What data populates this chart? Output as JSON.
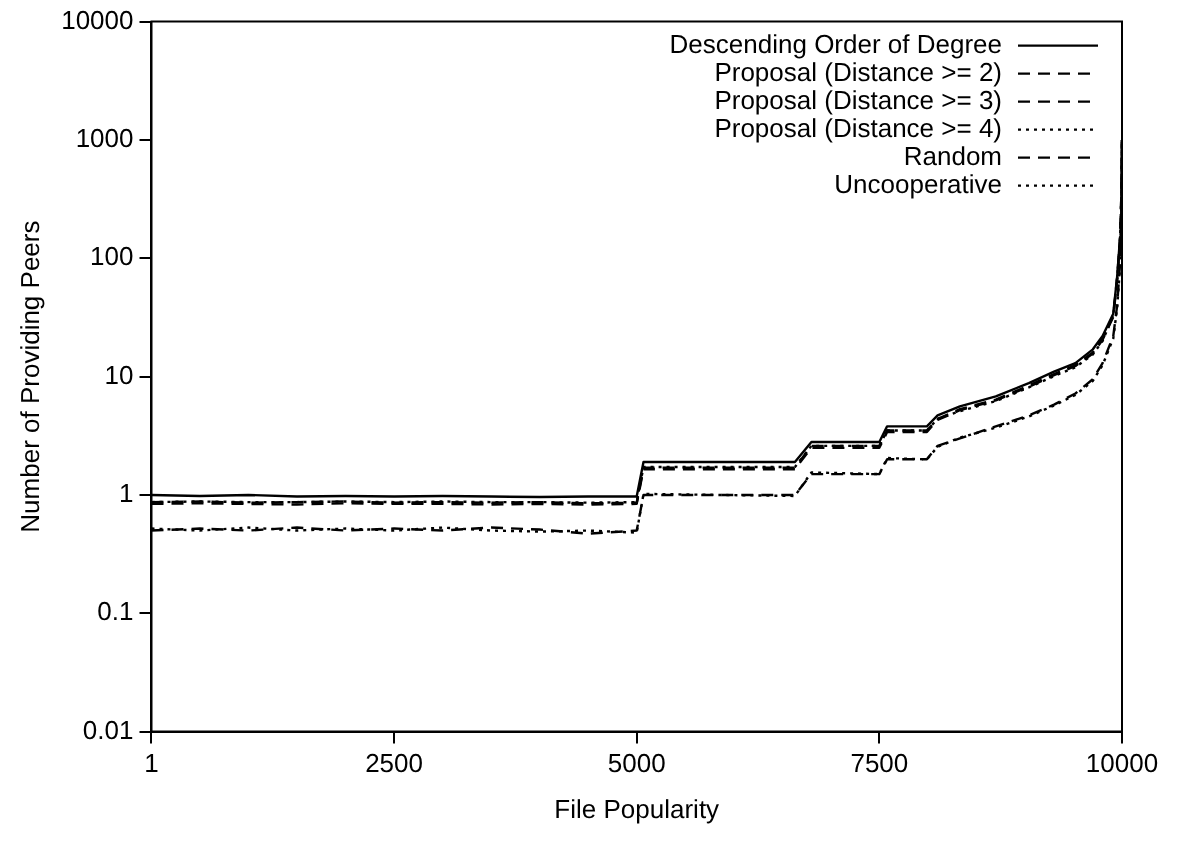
{
  "chart_data": {
    "type": "line",
    "xlabel": "File Popularity",
    "ylabel": "Number of Providing Peers",
    "x": [
      1,
      500,
      1000,
      1500,
      2000,
      2500,
      3000,
      3500,
      4000,
      4500,
      5000,
      5070,
      6630,
      6800,
      7500,
      7580,
      7990,
      8100,
      8330,
      8700,
      9040,
      9300,
      9520,
      9700,
      9800,
      9910,
      9950,
      9980,
      9995,
      10000
    ],
    "series": [
      {
        "name": "Descending Order of Degree",
        "color": "#000000",
        "line_style": "solid",
        "values": [
          1,
          0.98,
          1,
          0.97,
          0.98,
          0.97,
          0.98,
          0.97,
          0.96,
          0.97,
          0.97,
          1.9,
          1.9,
          2.8,
          2.8,
          3.8,
          3.8,
          4.7,
          5.6,
          6.8,
          8.8,
          11,
          13,
          17,
          22,
          34,
          70,
          150,
          400,
          1000
        ]
      },
      {
        "name": "Proposal (Distance >= 2)",
        "color": "#000000",
        "line_style": "dashed",
        "values": [
          0.87,
          0.88,
          0.86,
          0.87,
          0.88,
          0.86,
          0.87,
          0.86,
          0.87,
          0.85,
          0.86,
          1.7,
          1.7,
          2.6,
          2.6,
          3.5,
          3.5,
          4.4,
          5.3,
          6.4,
          8.4,
          10.5,
          12.5,
          16,
          21,
          33,
          68,
          145,
          390,
          1000
        ]
      },
      {
        "name": "Proposal (Distance >= 3)",
        "color": "#000000",
        "line_style": "dashed",
        "values": [
          0.84,
          0.85,
          0.84,
          0.83,
          0.85,
          0.84,
          0.84,
          0.83,
          0.84,
          0.83,
          0.84,
          1.65,
          1.65,
          2.5,
          2.5,
          3.4,
          3.4,
          4.3,
          5.2,
          6.3,
          8.2,
          10.3,
          12.3,
          15.7,
          20.5,
          32,
          66,
          140,
          380,
          1000
        ]
      },
      {
        "name": "Proposal (Distance >= 4)",
        "color": "#000000",
        "line_style": "dotted",
        "values": [
          0.87,
          0.88,
          0.87,
          0.87,
          0.88,
          0.87,
          0.88,
          0.87,
          0.87,
          0.86,
          0.87,
          1.72,
          1.72,
          2.6,
          2.6,
          3.5,
          3.5,
          4.4,
          5.1,
          6.2,
          8.1,
          10.1,
          12,
          15.4,
          20,
          33,
          68,
          146,
          370,
          1000
        ]
      },
      {
        "name": "Random",
        "color": "#000000",
        "line_style": "dashed",
        "values": [
          0.5,
          0.52,
          0.5,
          0.53,
          0.5,
          0.52,
          0.5,
          0.53,
          0.51,
          0.47,
          0.5,
          1,
          1,
          1.5,
          1.5,
          2,
          2,
          2.6,
          3,
          3.8,
          4.7,
          5.8,
          7.2,
          9.5,
          13,
          22,
          40,
          90,
          300,
          1000
        ]
      },
      {
        "name": "Uncooperative",
        "color": "#000000",
        "line_style": "dotted",
        "values": [
          0.52,
          0.5,
          0.53,
          0.5,
          0.52,
          0.5,
          0.53,
          0.5,
          0.49,
          0.5,
          0.48,
          1.02,
          0.98,
          1.55,
          1.5,
          2.05,
          2,
          2.55,
          3.05,
          3.7,
          4.6,
          5.7,
          7,
          9.2,
          12.5,
          21,
          38,
          85,
          280,
          1000
        ]
      }
    ],
    "xlim": [
      1,
      10000
    ],
    "xticks": [
      1,
      2500,
      5000,
      7500,
      10000
    ],
    "ylim": [
      0.01,
      10000
    ],
    "yticks": [
      0.01,
      0.1,
      1,
      10,
      100,
      1000,
      10000
    ],
    "log": "y",
    "grid": false,
    "legend": "top right",
    "marker": "none"
  }
}
